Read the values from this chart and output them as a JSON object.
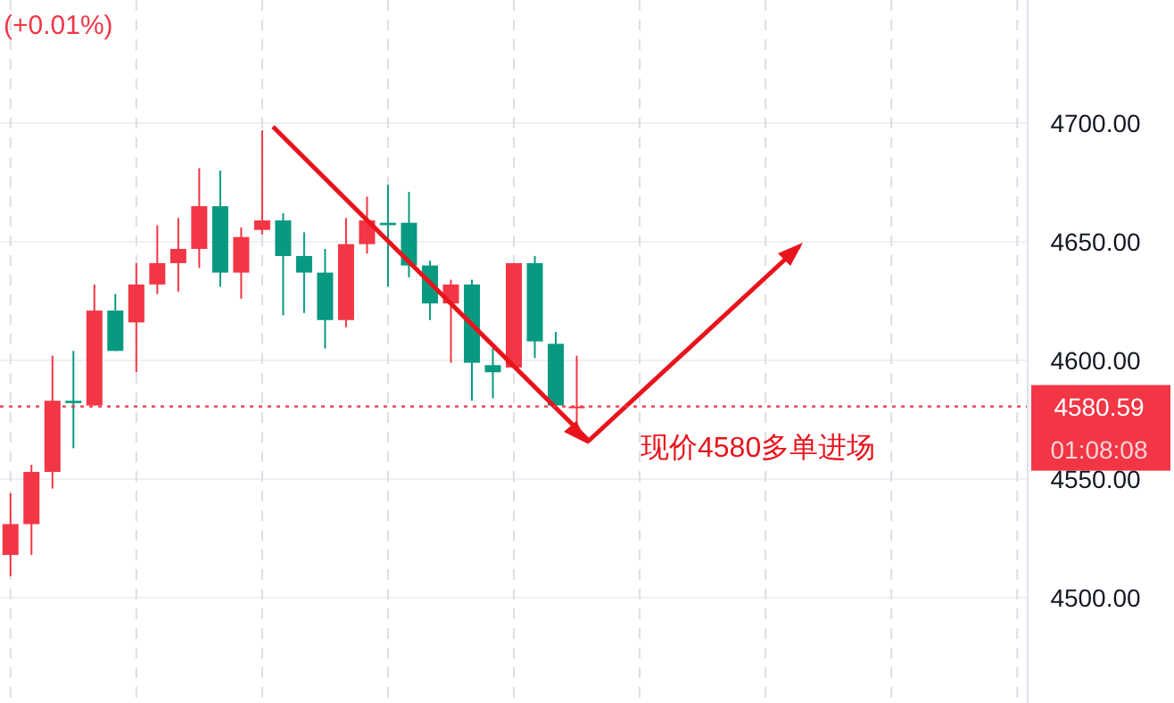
{
  "chart_data": {
    "type": "candlestick",
    "categories": [
      null,
      null,
      null,
      null,
      null,
      null,
      null,
      null,
      null,
      null,
      null,
      null,
      null,
      null,
      null,
      null,
      null,
      null,
      null,
      null,
      null,
      null,
      null,
      null,
      null,
      null,
      null,
      null,
      null,
      null,
      null,
      null,
      null,
      null,
      null,
      null,
      null,
      null,
      null,
      null,
      null,
      null,
      null,
      null,
      null,
      null,
      null,
      null,
      null
    ],
    "ohlc": [
      [
        4518,
        4544,
        4509,
        4531
      ],
      [
        4531,
        4556,
        4518,
        4553
      ],
      [
        4553,
        4602,
        4546,
        4583
      ],
      [
        4583,
        4604,
        4563,
        4582
      ],
      [
        4581,
        4632,
        4581,
        4621
      ],
      [
        4621,
        4628,
        4604,
        4604
      ],
      [
        4616,
        4641,
        4595,
        4632
      ],
      [
        4632,
        4657,
        4628,
        4641
      ],
      [
        4641,
        4660,
        4629,
        4647
      ],
      [
        4647,
        4681,
        4639,
        4665
      ],
      [
        4665,
        4680,
        4631,
        4637
      ],
      [
        4637,
        4656,
        4626,
        4652
      ],
      [
        4655,
        4697,
        4653,
        4659
      ],
      [
        4659,
        4662,
        4619,
        4644
      ],
      [
        4644,
        4654,
        4620,
        4637
      ],
      [
        4637,
        4647,
        4605,
        4617
      ],
      [
        4617,
        4660,
        4614,
        4649
      ],
      [
        4649,
        4669,
        4645,
        4659
      ],
      [
        4658,
        4674,
        4631,
        4657
      ],
      [
        4658,
        4671,
        4635,
        4640
      ],
      [
        4640,
        4642,
        4617,
        4624
      ],
      [
        4624,
        4634,
        4599,
        4632
      ],
      [
        4632,
        4634,
        4583,
        4599
      ],
      [
        4598,
        4605,
        4584,
        4595
      ],
      [
        4597,
        4641,
        4597,
        4641
      ],
      [
        4641,
        4644,
        4601,
        4608
      ],
      [
        4607,
        4612,
        4579,
        4581
      ],
      [
        4580,
        4602,
        4573,
        4580.59
      ],
      null,
      null,
      null,
      null,
      null,
      null,
      null,
      null,
      null,
      null,
      null,
      null,
      null,
      null,
      null,
      null,
      null,
      null,
      null,
      null,
      null
    ],
    "colors": [
      "#f23645",
      "#f23645",
      "#f23645",
      "#089981",
      "#f23645",
      "#089981",
      "#f23645",
      "#f23645",
      "#f23645",
      "#f23645",
      "#089981",
      "#f23645",
      "#f23645",
      "#089981",
      "#089981",
      "#089981",
      "#f23645",
      "#f23645",
      "#089981",
      "#089981",
      "#089981",
      "#f23645",
      "#089981",
      "#089981",
      "#f23645",
      "#089981",
      "#089981",
      "#f23645",
      null,
      null,
      null,
      null,
      null,
      null,
      null,
      null,
      null,
      null,
      null,
      null,
      null,
      null,
      null,
      null,
      null,
      null,
      null,
      null,
      null
    ],
    "ylim": [
      4455.6,
      4751.9
    ],
    "yticks": [
      {
        "value": 4500,
        "label": "4500.00"
      },
      {
        "value": 4550,
        "label": "4550.00"
      },
      {
        "value": 4600,
        "label": "4600.00"
      },
      {
        "value": 4650,
        "label": "4650.00"
      },
      {
        "value": 4700,
        "label": "4700.00"
      }
    ],
    "grid": true,
    "ref_lines": [
      {
        "axis": "y",
        "value": 4580.59,
        "label": "4580.59",
        "color": "#f23645",
        "line_style": "dotted"
      }
    ],
    "annotations": [
      "(+0.01%)",
      "现价4580多单进场",
      "01:08:08"
    ]
  }
}
